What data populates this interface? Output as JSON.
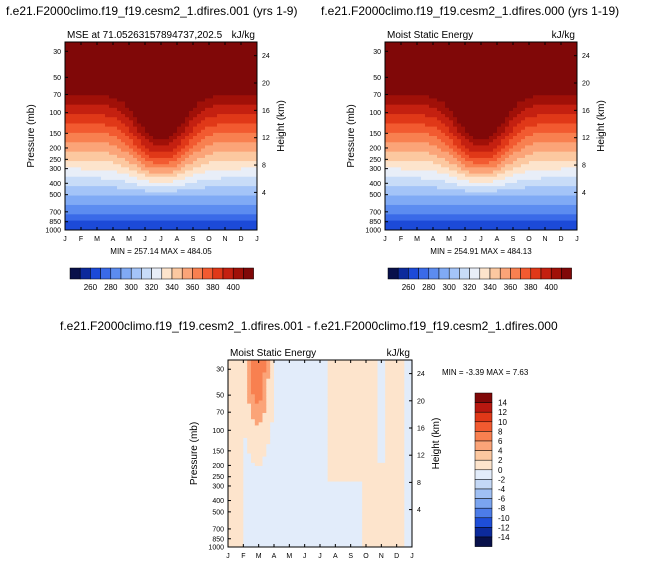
{
  "panels": [
    {
      "title": "f.e21.F2000climo.f19_f19.cesm2_1.dfires.001 (yrs 1-9)",
      "left_label": "MSE at 71.05263157894737,202.5",
      "right_label": "kJ/kg",
      "min_max": "MIN = 257.14 MAX = 484.05"
    },
    {
      "title": "f.e21.F2000climo.f19_f19.cesm2_1.dfires.000 (yrs 1-19)",
      "left_label": "Moist Static Energy",
      "right_label": "kJ/kg",
      "min_max": "MIN = 254.91 MAX = 484.13"
    },
    {
      "title": "f.e21.F2000climo.f19_f19.cesm2_1.dfires.001 - f.e21.F2000climo.f19_f19.cesm2_1.dfires.000",
      "left_label": "Moist Static Energy",
      "right_label": "kJ/kg",
      "min_max": "MIN = -3.39 MAX =  7.63"
    }
  ],
  "axis": {
    "ylabel": "Pressure (mb)",
    "ylabel_right": "Height (km)",
    "months": [
      "J",
      "F",
      "M",
      "A",
      "M",
      "J",
      "J",
      "A",
      "S",
      "O",
      "N",
      "D",
      "J"
    ],
    "pressure_ticks": [
      "30",
      "50",
      "70",
      "100",
      "150",
      "200",
      "250",
      "300",
      "400",
      "500",
      "700",
      "850",
      "1000"
    ],
    "height_ticks": [
      "24",
      "20",
      "16",
      "12",
      "8",
      "4"
    ]
  },
  "colorbar_abs": {
    "labels": [
      "260",
      "280",
      "300",
      "320",
      "340",
      "360",
      "380",
      "400"
    ],
    "colors": [
      "#08104a",
      "#0c2a9c",
      "#1c4ad8",
      "#3a6ae8",
      "#5c8cf0",
      "#80aaf5",
      "#a4c4f8",
      "#c8dcf8",
      "#e8eef8",
      "#fde4cc",
      "#fcc8a0",
      "#fba478",
      "#f88050",
      "#f25a30",
      "#e03818",
      "#c42010",
      "#a01008",
      "#800808"
    ]
  },
  "colorbar_diff": {
    "labels": [
      "14",
      "12",
      "10",
      "8",
      "6",
      "4",
      "2",
      "0",
      "-2",
      "-4",
      "-6",
      "-8",
      "-10",
      "-12",
      "-14"
    ],
    "colors": [
      "#800808",
      "#b81810",
      "#e03818",
      "#f25a30",
      "#f88050",
      "#fba478",
      "#fcc8a0",
      "#fde4cc",
      "#e2ecfa",
      "#c4d8f6",
      "#a0c0f4",
      "#7aa4f0",
      "#4c7ce8",
      "#1e4ed8",
      "#0c2a9c",
      "#08104a"
    ]
  },
  "chart_data": [
    {
      "type": "heatmap",
      "title": "MSE at 71.05263157894737,202.5",
      "x": [
        "J",
        "F",
        "M",
        "A",
        "M",
        "J",
        "J",
        "A",
        "S",
        "O",
        "N",
        "D",
        "J"
      ],
      "ylabel": "Pressure (mb)",
      "units": "kJ/kg",
      "min": 257.14,
      "max": 484.05,
      "contour_levels": [
        260,
        270,
        280,
        290,
        300,
        310,
        320,
        330,
        340,
        350,
        360,
        370,
        380,
        390,
        400,
        410
      ]
    },
    {
      "type": "heatmap",
      "title": "Moist Static Energy",
      "x": [
        "J",
        "F",
        "M",
        "A",
        "M",
        "J",
        "J",
        "A",
        "S",
        "O",
        "N",
        "D",
        "J"
      ],
      "ylabel": "Pressure (mb)",
      "units": "kJ/kg",
      "min": 254.91,
      "max": 484.13,
      "contour_levels": [
        260,
        270,
        280,
        290,
        300,
        310,
        320,
        330,
        340,
        350,
        360,
        370,
        380,
        390,
        400,
        410
      ]
    },
    {
      "type": "heatmap",
      "title": "Moist Static Energy",
      "x": [
        "J",
        "F",
        "M",
        "A",
        "M",
        "J",
        "J",
        "A",
        "S",
        "O",
        "N",
        "D",
        "J"
      ],
      "ylabel": "Pressure (mb)",
      "units": "kJ/kg",
      "min": -3.39,
      "max": 7.63,
      "contour_levels": [
        -14,
        -12,
        -10,
        -8,
        -6,
        -4,
        -2,
        0,
        2,
        4,
        6,
        8,
        10,
        12,
        14
      ]
    }
  ]
}
